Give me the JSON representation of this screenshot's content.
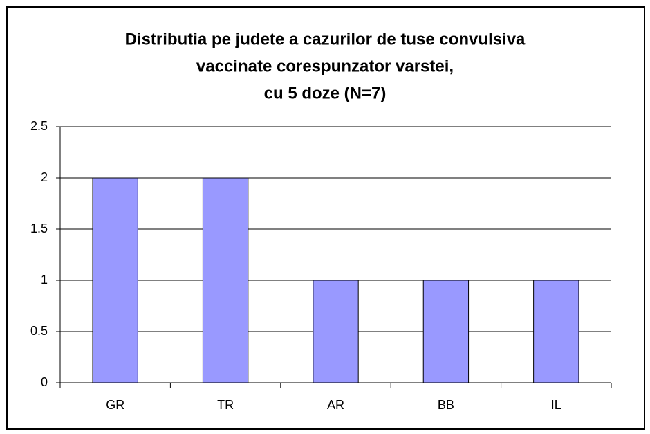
{
  "chart_data": {
    "type": "bar",
    "title": [
      "Distributia pe judete a cazurilor de tuse convulsiva",
      "vaccinate corespunzator varstei,",
      "cu 5 doze (N=7)"
    ],
    "categories": [
      "GR",
      "TR",
      "AR",
      "BB",
      "IL"
    ],
    "values": [
      2,
      2,
      1,
      1,
      1
    ],
    "color": "#9999ff",
    "ylim": [
      0,
      2.5
    ],
    "yticks": [
      0,
      0.5,
      1,
      1.5,
      2,
      2.5
    ],
    "grid": true
  }
}
